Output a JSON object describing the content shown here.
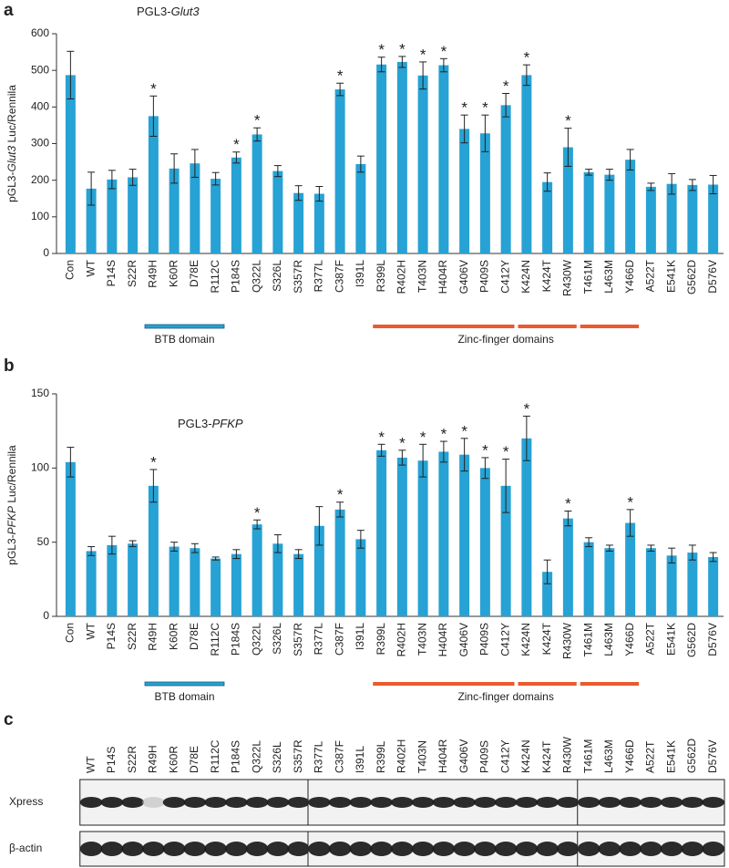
{
  "chart_data": [
    {
      "type": "bar",
      "panel": "a",
      "title": [
        {
          "text": "PGL3-"
        },
        {
          "text": "Glut3",
          "italic": true
        }
      ],
      "ylabel": [
        {
          "text": "pGL3-"
        },
        {
          "text": "Glut3",
          "italic": true
        },
        {
          "text": " Luc/Rennila"
        }
      ],
      "categories": [
        "Con",
        "WT",
        "P14S",
        "S22R",
        "R49H",
        "K60R",
        "D78E",
        "R112C",
        "P184S",
        "Q322L",
        "S326L",
        "S357R",
        "R377L",
        "C387F",
        "I391L",
        "R399L",
        "R402H",
        "T403N",
        "H404R",
        "G406V",
        "P409S",
        "C412Y",
        "K424N",
        "K424T",
        "R430W",
        "T461M",
        "L463M",
        "Y466D",
        "A522T",
        "E541K",
        "G562D",
        "D576V"
      ],
      "values": [
        487,
        177,
        202,
        208,
        375,
        232,
        246,
        204,
        262,
        325,
        225,
        165,
        163,
        448,
        244,
        516,
        523,
        486,
        514,
        340,
        328,
        405,
        487,
        195,
        290,
        222,
        215,
        256,
        182,
        190,
        187,
        188
      ],
      "errors": [
        65,
        45,
        25,
        22,
        55,
        40,
        38,
        17,
        15,
        18,
        15,
        20,
        20,
        17,
        22,
        20,
        15,
        37,
        18,
        38,
        50,
        32,
        28,
        25,
        52,
        8,
        15,
        28,
        10,
        28,
        15,
        25
      ],
      "markers": [
        null,
        null,
        null,
        null,
        "*",
        null,
        null,
        null,
        "*",
        "*",
        null,
        null,
        null,
        "*",
        null,
        "*",
        "*",
        "*",
        "*",
        "*",
        "*",
        "*",
        "*",
        null,
        "*",
        null,
        null,
        null,
        null,
        null,
        null,
        null
      ],
      "color": "#27a2d4",
      "ylim": [
        0,
        600
      ],
      "yticks": [
        0,
        100,
        200,
        300,
        400,
        500,
        600
      ],
      "domains": [
        {
          "label": "BTB domain",
          "color": "#27a2d4",
          "spans": [
            [
              "R49H",
              "R112C"
            ]
          ]
        },
        {
          "label": "Zinc-finger domains",
          "color": "#ea5a2c",
          "spans": [
            [
              "R399L",
              "C412Y"
            ],
            [
              "K424N",
              "R430W"
            ],
            [
              "T461M",
              "Y466D"
            ]
          ]
        }
      ]
    },
    {
      "type": "bar",
      "panel": "b",
      "title": [
        {
          "text": "PGL3-"
        },
        {
          "text": "PFKP",
          "italic": true
        }
      ],
      "ylabel": [
        {
          "text": "pGL3-"
        },
        {
          "text": "PFKP",
          "italic": true
        },
        {
          "text": " Luc/Rennila"
        }
      ],
      "categories": [
        "Con",
        "WT",
        "P14S",
        "S22R",
        "R49H",
        "K60R",
        "D78E",
        "R112C",
        "P184S",
        "Q322L",
        "S326L",
        "S357R",
        "R377L",
        "C387F",
        "I391L",
        "R399L",
        "R402H",
        "T403N",
        "H404R",
        "G406V",
        "P409S",
        "C412Y",
        "K424N",
        "K424T",
        "R430W",
        "T461M",
        "L463M",
        "Y466D",
        "A522T",
        "E541K",
        "G562D",
        "D576V"
      ],
      "values": [
        104,
        44,
        48,
        49,
        88,
        47,
        46,
        39,
        42,
        62,
        49,
        42,
        61,
        72,
        52,
        112,
        107,
        105,
        111,
        109,
        100,
        88,
        120,
        30,
        66,
        50,
        46,
        63,
        46,
        41,
        43,
        40
      ],
      "errors": [
        10,
        3,
        6,
        2,
        11,
        3,
        3,
        1,
        3,
        3,
        6,
        3,
        13,
        5,
        6,
        4,
        5,
        11,
        7,
        11,
        7,
        18,
        15,
        8,
        5,
        3,
        2,
        9,
        2,
        5,
        5,
        3
      ],
      "markers": [
        null,
        null,
        null,
        null,
        "*",
        null,
        null,
        null,
        null,
        "*",
        null,
        null,
        null,
        "*",
        null,
        "*",
        "*",
        "*",
        "*",
        "*",
        "*",
        "*",
        "*",
        null,
        "*",
        null,
        null,
        "*",
        null,
        null,
        null,
        null
      ],
      "color": "#27a2d4",
      "ylim": [
        0,
        150
      ],
      "yticks": [
        0,
        50,
        100,
        150
      ],
      "domains": [
        {
          "label": "BTB domain",
          "color": "#27a2d4",
          "spans": [
            [
              "R49H",
              "R112C"
            ]
          ]
        },
        {
          "label": "Zinc-finger domains",
          "color": "#ea5a2c",
          "spans": [
            [
              "R399L",
              "C412Y"
            ],
            [
              "K424N",
              "R430W"
            ],
            [
              "T461M",
              "Y466D"
            ]
          ]
        }
      ]
    }
  ],
  "blot": {
    "panel": "c",
    "lanes": [
      "WT",
      "P14S",
      "S22R",
      "R49H",
      "K60R",
      "D78E",
      "R112C",
      "P184S",
      "Q322L",
      "S326L",
      "S357R",
      "R377L",
      "C387F",
      "I391L",
      "R399L",
      "R402H",
      "T403N",
      "H404R",
      "G406V",
      "P409S",
      "C412Y",
      "K424N",
      "K424T",
      "R430W",
      "T461M",
      "L463M",
      "Y466D",
      "A522T",
      "E541K",
      "G562D",
      "D576V"
    ],
    "rows": [
      "Xpress",
      "β-actin"
    ]
  }
}
